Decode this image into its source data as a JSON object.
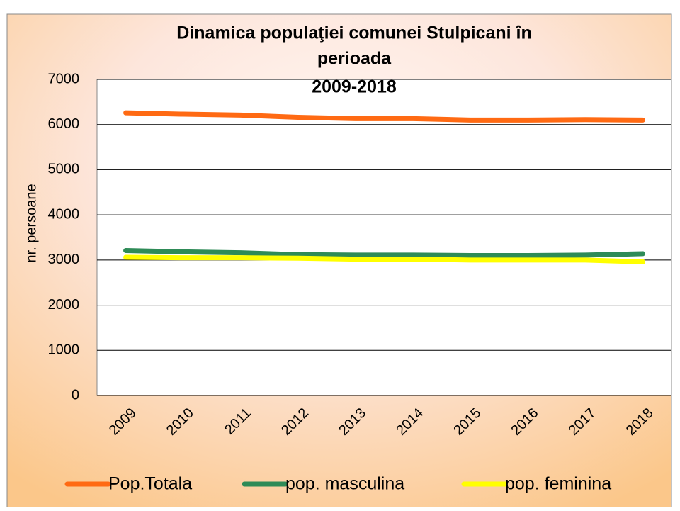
{
  "chart_data": {
    "type": "line",
    "title": [
      "Dinamica populaţiei comunei Stulpicani în",
      "perioada",
      "2009-2018"
    ],
    "y_label": "nr. persoane",
    "categories": [
      "2009",
      "2010",
      "2011",
      "2012",
      "2013",
      "2014",
      "2015",
      "2016",
      "2017",
      "2018"
    ],
    "series": [
      {
        "name": "Pop.Totala",
        "color": "#ff6a13",
        "values": [
          6260,
          6230,
          6210,
          6160,
          6130,
          6130,
          6100,
          6100,
          6110,
          6100
        ]
      },
      {
        "name": "pop. masculina",
        "color": "#2e8b57",
        "values": [
          3210,
          3180,
          3160,
          3120,
          3110,
          3110,
          3100,
          3100,
          3110,
          3140
        ]
      },
      {
        "name": "pop. feminina",
        "color": "#ffff00",
        "values": [
          3060,
          3050,
          3050,
          3040,
          3020,
          3020,
          3000,
          3000,
          3000,
          2960
        ]
      }
    ],
    "ylim": [
      0,
      7000
    ],
    "yticks": [
      0,
      1000,
      2000,
      3000,
      4000,
      5000,
      6000,
      7000
    ],
    "grid": true,
    "legend": "bottom"
  }
}
